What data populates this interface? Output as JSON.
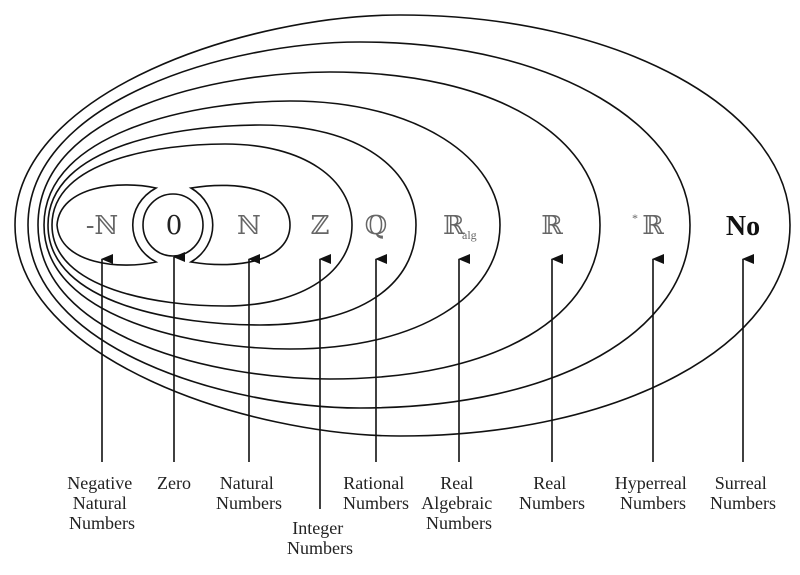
{
  "sets": [
    {
      "id": "neg-natural",
      "symbol": "-ℕ",
      "label": [
        "Negative",
        "Natural",
        "Numbers"
      ]
    },
    {
      "id": "zero",
      "symbol": "0",
      "label": [
        "Zero"
      ]
    },
    {
      "id": "natural",
      "symbol": "ℕ",
      "label": [
        "Natural",
        "Numbers"
      ]
    },
    {
      "id": "integer",
      "symbol": "ℤ",
      "label": [
        "Integer",
        "Numbers"
      ]
    },
    {
      "id": "rational",
      "symbol": "ℚ",
      "label": [
        "Rational",
        "Numbers"
      ]
    },
    {
      "id": "real-algebraic",
      "symbol": "ℝ",
      "subscript": "alg",
      "label": [
        "Real",
        "Algebraic",
        "Numbers"
      ]
    },
    {
      "id": "real",
      "symbol": "ℝ",
      "label": [
        "Real",
        "Numbers"
      ]
    },
    {
      "id": "hyperreal",
      "symbol": "ℝ",
      "prefix": "*",
      "label": [
        "Hyperreal",
        "Numbers"
      ]
    },
    {
      "id": "surreal",
      "symbol": "No",
      "label": [
        "Surreal",
        "Numbers"
      ]
    }
  ]
}
